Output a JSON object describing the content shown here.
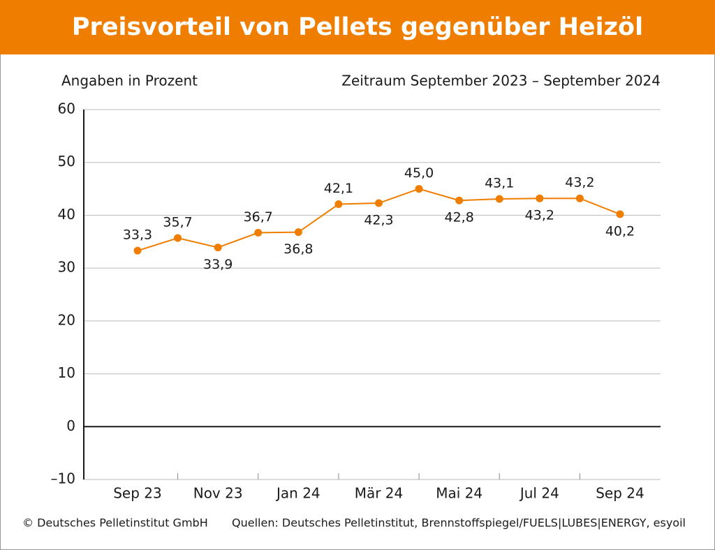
{
  "chart_data": {
    "type": "line",
    "title": "Preisvorteil von Pellets gegenüber Heizöl",
    "subtitle": "Angaben in Prozent",
    "period": "Zeitraum September 2023 – September 2024",
    "categories": [
      "Sep 23",
      null,
      "Nov 23",
      null,
      "Jan 24",
      null,
      "Mär 24",
      null,
      "Mai 24",
      null,
      "Jul 24",
      null,
      "Sep 24"
    ],
    "series": [
      {
        "name": "Preisvorteil",
        "color": "#ef7d00",
        "values": [
          33.3,
          35.7,
          33.9,
          36.7,
          36.8,
          42.1,
          42.3,
          45.0,
          42.8,
          43.1,
          43.2,
          43.2,
          40.2
        ],
        "value_labels": [
          "33,3",
          "35,7",
          "33,9",
          "36,7",
          "36,8",
          "42,1",
          "42,3",
          "45,0",
          "42,8",
          "43,1",
          "43,2",
          "43,2",
          "40,2"
        ]
      }
    ],
    "ylim": [
      -10,
      60
    ],
    "yticks": [
      {
        "value": -10,
        "label": "–10"
      },
      0,
      10,
      20,
      30,
      40,
      50,
      60
    ],
    "grid": true,
    "copyright": "© Deutsches Pelletinstitut GmbH",
    "sources": "Quellen: Deutsches Pelletinstitut, Brennstoffspiegel/FUELS|LUBES|ENERGY, esyoil"
  }
}
